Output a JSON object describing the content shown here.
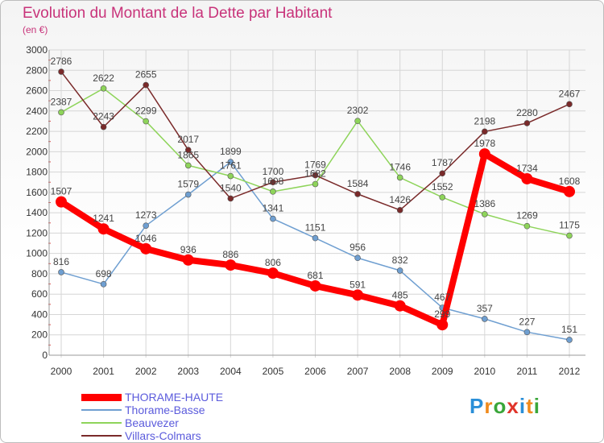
{
  "title": "Evolution du Montant de la Dette par Habitant",
  "subtitle": "(en €)",
  "logo_text": "Proxiti",
  "colors": {
    "title": "#c8337a",
    "grid": "#d6d6d6",
    "axis_text": "#333333",
    "legend_text": "#5b5bdc"
  },
  "chart_data": {
    "type": "line",
    "x": [
      "2000",
      "2001",
      "2002",
      "2003",
      "2004",
      "2005",
      "2006",
      "2007",
      "2008",
      "2009",
      "2010",
      "2011",
      "2012"
    ],
    "ylim": [
      0,
      3000
    ],
    "yticks": [
      0,
      200,
      400,
      600,
      800,
      1000,
      1200,
      1400,
      1600,
      1800,
      2000,
      2200,
      2400,
      2600,
      2800,
      3000
    ],
    "grid": true,
    "legend_position": "bottom-left",
    "series": [
      {
        "name": "THORAME-HAUTE",
        "color": "#ff0000",
        "values": [
          1507,
          1241,
          1046,
          936,
          886,
          806,
          681,
          591,
          485,
          299,
          1978,
          1734,
          1608
        ]
      },
      {
        "name": "Thorame-Basse",
        "color": "#6f9fd1",
        "values": [
          816,
          698,
          1273,
          1579,
          1899,
          1341,
          1151,
          956,
          832,
          467,
          357,
          227,
          151
        ]
      },
      {
        "name": "Beauvezer",
        "color": "#8ed45a",
        "values": [
          2387,
          2622,
          2299,
          1865,
          1761,
          1608,
          1682,
          2302,
          1746,
          1552,
          1386,
          1269,
          1175
        ]
      },
      {
        "name": "Villars-Colmars",
        "color": "#7a2a2a",
        "values": [
          2786,
          2243,
          2655,
          2017,
          1540,
          1700,
          1769,
          1584,
          1426,
          1787,
          2198,
          2280,
          2467
        ]
      }
    ]
  }
}
